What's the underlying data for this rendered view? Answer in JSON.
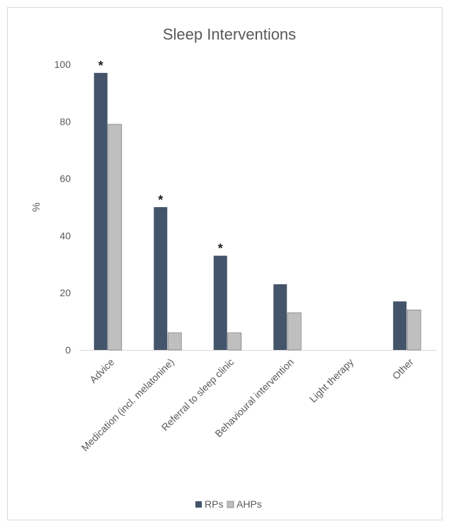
{
  "chart_data": {
    "type": "bar",
    "title": "Sleep Interventions",
    "xlabel": "",
    "ylabel": "%",
    "ylim": [
      0,
      100
    ],
    "yticks": [
      0,
      20,
      40,
      60,
      80,
      100
    ],
    "grid": false,
    "legend_position": "bottom",
    "categories": [
      "Advice",
      "Medication (incl. melatonine)",
      "Referral to sleep clinic",
      "Behavioural intervention",
      "Light therapy",
      "Other"
    ],
    "series": [
      {
        "name": "RPs",
        "color": "#44546a",
        "values": [
          97,
          50,
          33,
          23,
          0,
          17
        ]
      },
      {
        "name": "AHPs",
        "color": "#bfbfbf",
        "values": [
          79,
          6,
          6,
          13,
          0,
          14
        ]
      }
    ],
    "annotations": [
      {
        "category": "Advice",
        "series": "RPs",
        "text": "*"
      },
      {
        "category": "Medication (incl. melatonine)",
        "series": "RPs",
        "text": "*"
      },
      {
        "category": "Referral to sleep clinic",
        "series": "RPs",
        "text": "*"
      }
    ]
  }
}
